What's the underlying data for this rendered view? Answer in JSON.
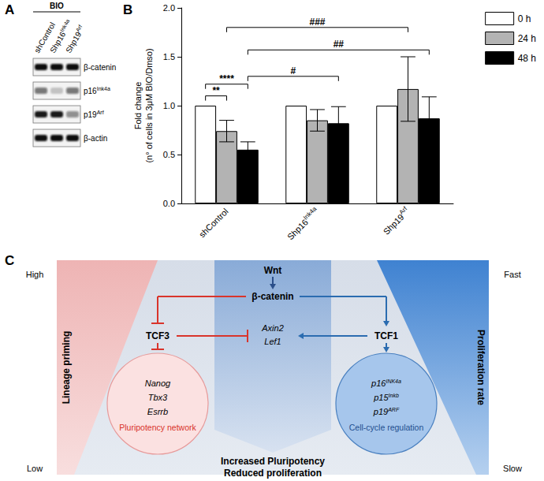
{
  "panel_a": {
    "label": "A",
    "treatment": "BIO",
    "lanes": [
      "shControl",
      "Shp16Ink4a",
      "Shp19Arf"
    ],
    "rows": [
      "β-catenin",
      "p16Ink4a",
      "p19Arf",
      "β-actin"
    ],
    "band_intensity": [
      [
        1,
        1,
        1
      ],
      [
        0.55,
        0.2,
        0.55
      ],
      [
        0.95,
        0.95,
        0.45
      ],
      [
        1,
        1,
        1
      ]
    ]
  },
  "chart_data": {
    "type": "bar",
    "panel_label": "B",
    "ylabel": [
      "Fold change",
      "(n° of cells in 3μM BIO/Dmso)"
    ],
    "categories": [
      "shControl",
      "Shp16Ink4a",
      "Shp19Arf"
    ],
    "series": [
      {
        "name": "0 h",
        "color": "#ffffff",
        "values": [
          1.0,
          1.0,
          1.0
        ],
        "errors": [
          null,
          null,
          null
        ]
      },
      {
        "name": "24 h",
        "color": "#b3b3b3",
        "values": [
          0.74,
          0.85,
          1.17
        ],
        "errors": [
          0.11,
          0.11,
          0.33
        ]
      },
      {
        "name": "48 h",
        "color": "#000000",
        "values": [
          0.55,
          0.82,
          0.87
        ],
        "errors": [
          0.08,
          0.17,
          0.22
        ]
      }
    ],
    "ylim": [
      0,
      2
    ],
    "yticks": [
      {
        "value": 0,
        "label": "0.0"
      },
      {
        "value": 0.5,
        "label": "0.5"
      },
      {
        "value": 1,
        "label": "1.0"
      },
      {
        "value": 1.5,
        "label": "1.5"
      },
      {
        "value": 2,
        "label": "2.0"
      }
    ],
    "grid": false,
    "legend": "upper right",
    "annotations": [
      {
        "text": "**",
        "from": {
          "category": "shControl",
          "series": "0 h"
        },
        "to": {
          "category": "shControl",
          "series": "24 h"
        },
        "y": 1.1
      },
      {
        "text": "****",
        "from": {
          "category": "shControl",
          "series": "0 h"
        },
        "to": {
          "category": "shControl",
          "series": "48 h"
        },
        "y": 1.22
      },
      {
        "text": "#",
        "from": {
          "category": "shControl",
          "series": "48 h"
        },
        "to": {
          "category": "Shp16Ink4a",
          "series": "48 h"
        },
        "y": 1.3
      },
      {
        "text": "##",
        "from": {
          "category": "shControl",
          "series": "48 h"
        },
        "to": {
          "category": "Shp19Arf",
          "series": "48 h"
        },
        "y": 1.57
      },
      {
        "text": "###",
        "from": {
          "category": "shControl",
          "series": "24 h"
        },
        "to": {
          "category": "Shp19Arf",
          "series": "24 h"
        },
        "y": 1.8
      }
    ]
  },
  "panel_c": {
    "label": "C",
    "left_axis": {
      "title": "Lineage priming",
      "high": "High",
      "low": "Low"
    },
    "right_axis": {
      "title": "Proliferation rate",
      "high": "Fast",
      "low": "Slow"
    },
    "signal": "Wnt",
    "mediator": "β-catenin",
    "repressor": "TCF3",
    "activator": "TCF1",
    "shared_targets": [
      "Axin2",
      "Lef1"
    ],
    "pluripotency": {
      "genes": [
        "Nanog",
        "Tbx3",
        "Esrrb"
      ],
      "label": "Pluripotency network"
    },
    "cell_cycle": {
      "genes": [
        "p16INK4a",
        "p15Inkb",
        "p19ARF"
      ],
      "label": "Cell-cycle regulation"
    },
    "outcome": [
      "Increased Pluripotency",
      "Reduced proliferation"
    ]
  }
}
